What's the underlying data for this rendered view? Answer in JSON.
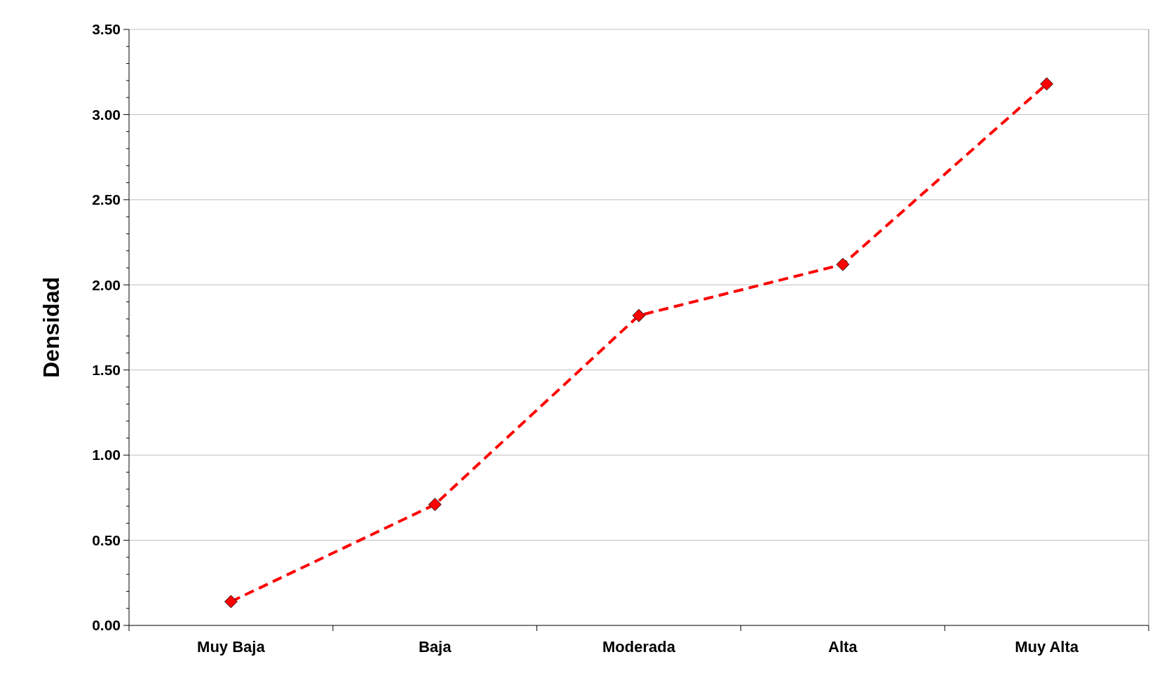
{
  "chart_data": {
    "type": "line",
    "ylabel": "Densidad",
    "categories": [
      "Muy Baja",
      "Baja",
      "Moderada",
      "Alta",
      "Muy Alta"
    ],
    "series": [
      {
        "color": "#ff0000",
        "values": [
          0.14,
          0.71,
          1.82,
          2.12,
          3.18
        ]
      }
    ],
    "ylim": [
      0,
      3.5
    ],
    "yticks": [
      {
        "value": 0,
        "label": "0.00"
      },
      {
        "value": 0.1,
        "label": null
      },
      {
        "value": 0.2,
        "label": null
      },
      {
        "value": 0.3,
        "label": null
      },
      {
        "value": 0.4,
        "label": null
      },
      {
        "value": 0.5,
        "label": "0.50"
      },
      {
        "value": 0.6,
        "label": null
      },
      {
        "value": 0.7,
        "label": null
      },
      {
        "value": 0.8,
        "label": null
      },
      {
        "value": 0.9,
        "label": null
      },
      {
        "value": 1,
        "label": "1.00"
      },
      {
        "value": 1.1,
        "label": null
      },
      {
        "value": 1.2,
        "label": null
      },
      {
        "value": 1.3,
        "label": null
      },
      {
        "value": 1.4,
        "label": null
      },
      {
        "value": 1.5,
        "label": "1.50"
      },
      {
        "value": 1.6,
        "label": null
      },
      {
        "value": 1.7,
        "label": null
      },
      {
        "value": 1.8,
        "label": null
      },
      {
        "value": 1.9,
        "label": null
      },
      {
        "value": 2,
        "label": "2.00"
      },
      {
        "value": 2.1,
        "label": null
      },
      {
        "value": 2.2,
        "label": null
      },
      {
        "value": 2.3,
        "label": null
      },
      {
        "value": 2.4,
        "label": null
      },
      {
        "value": 2.5,
        "label": "2.50"
      },
      {
        "value": 2.6,
        "label": null
      },
      {
        "value": 2.7,
        "label": null
      },
      {
        "value": 2.8,
        "label": null
      },
      {
        "value": 2.9,
        "label": null
      },
      {
        "value": 3,
        "label": "3.00"
      },
      {
        "value": 3.1,
        "label": null
      },
      {
        "value": 3.2,
        "label": null
      },
      {
        "value": 3.3,
        "label": null
      },
      {
        "value": 3.4,
        "label": null
      },
      {
        "value": 3.5,
        "label": "3.50"
      }
    ],
    "grid": "y",
    "marker": "diamond",
    "line_style": "dashed"
  }
}
